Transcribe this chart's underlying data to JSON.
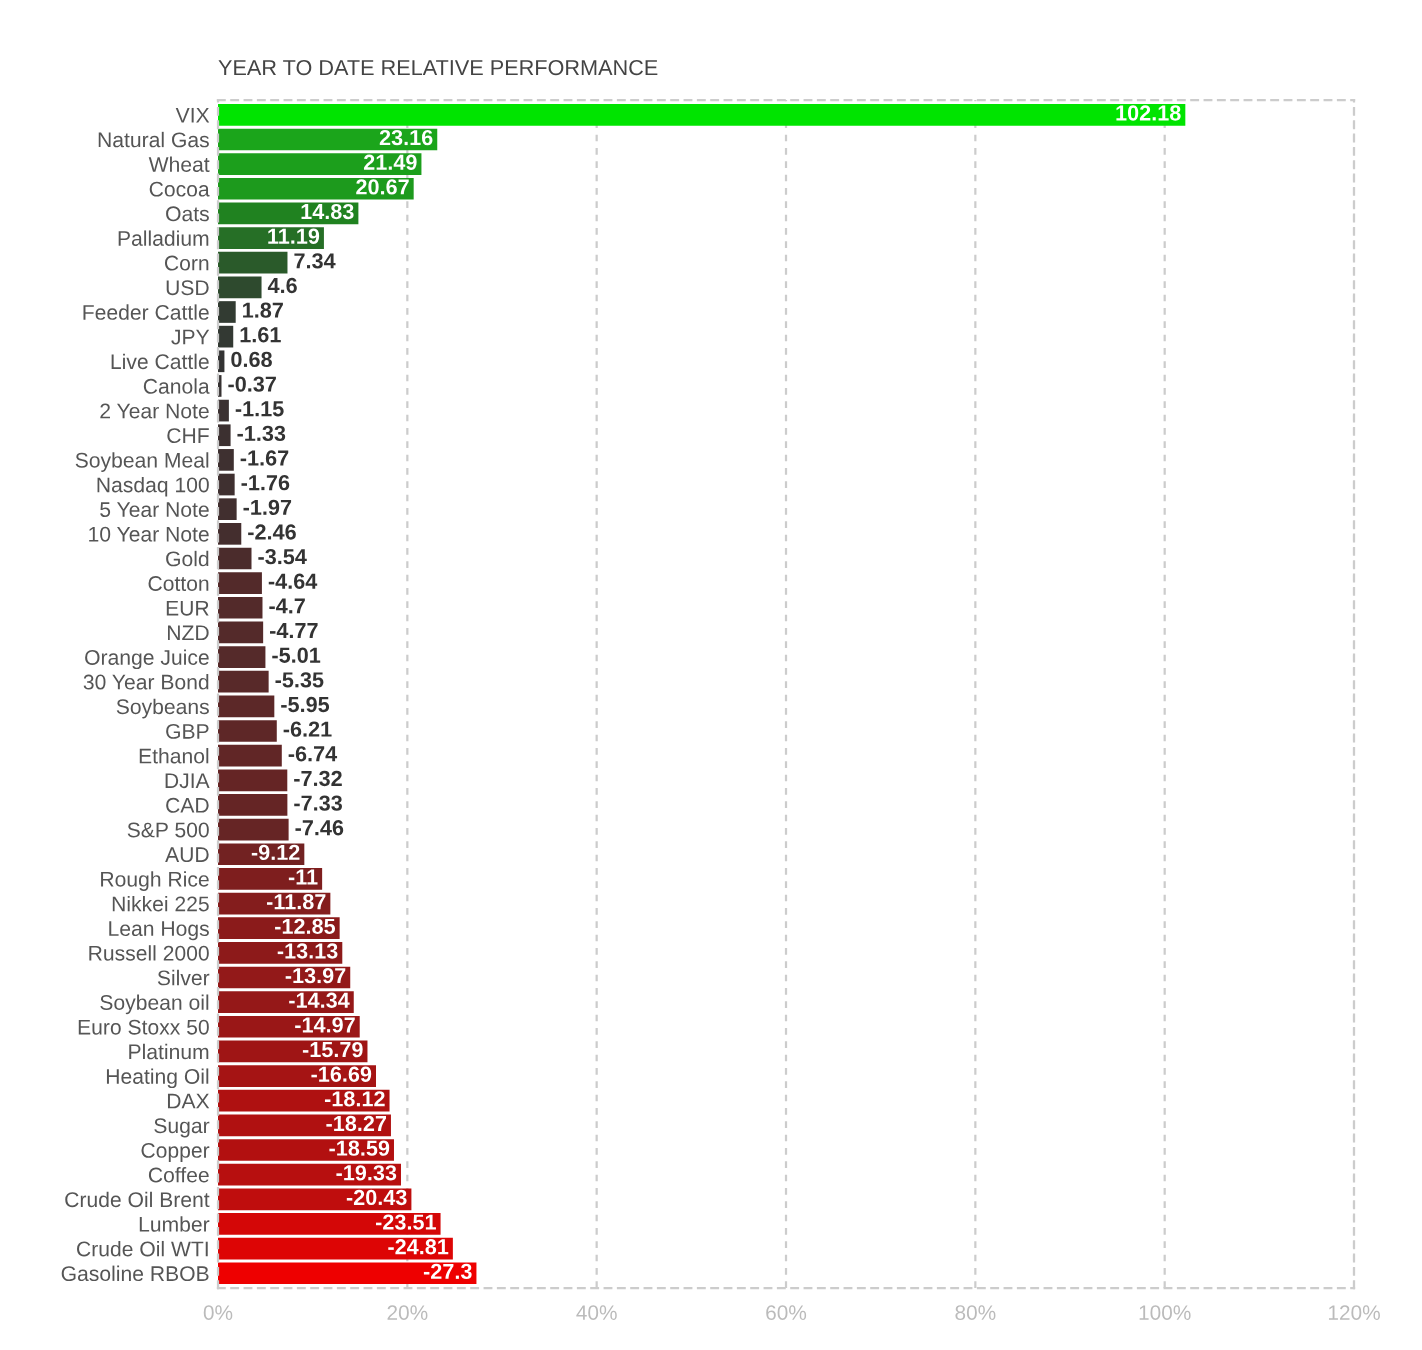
{
  "chart_data": {
    "type": "bar",
    "orientation": "horizontal",
    "title": "YEAR TO DATE RELATIVE PERFORMANCE",
    "categories": [
      "VIX",
      "Natural Gas",
      "Wheat",
      "Cocoa",
      "Oats",
      "Palladium",
      "Corn",
      "USD",
      "Feeder Cattle",
      "JPY",
      "Live Cattle",
      "Canola",
      "2 Year Note",
      "CHF",
      "Soybean Meal",
      "Nasdaq 100",
      "5 Year Note",
      "10 Year Note",
      "Gold",
      "Cotton",
      "EUR",
      "NZD",
      "Orange Juice",
      "30 Year Bond",
      "Soybeans",
      "GBP",
      "Ethanol",
      "DJIA",
      "CAD",
      "S&P 500",
      "AUD",
      "Rough Rice",
      "Nikkei 225",
      "Lean Hogs",
      "Russell 2000",
      "Silver",
      "Soybean oil",
      "Euro Stoxx 50",
      "Platinum",
      "Heating Oil",
      "DAX",
      "Sugar",
      "Copper",
      "Coffee",
      "Crude Oil Brent",
      "Lumber",
      "Crude Oil WTI",
      "Gasoline RBOB"
    ],
    "values": [
      102.18,
      23.16,
      21.49,
      20.67,
      14.83,
      11.19,
      7.34,
      4.6,
      1.87,
      1.61,
      0.68,
      -0.37,
      -1.15,
      -1.33,
      -1.67,
      -1.76,
      -1.97,
      -2.46,
      -3.54,
      -4.64,
      -4.7,
      -4.77,
      -5.01,
      -5.35,
      -5.95,
      -6.21,
      -6.74,
      -7.32,
      -7.33,
      -7.46,
      -9.12,
      -11,
      -11.87,
      -12.85,
      -13.13,
      -13.97,
      -14.34,
      -14.97,
      -15.79,
      -16.69,
      -18.12,
      -18.27,
      -18.59,
      -19.33,
      -20.43,
      -23.51,
      -24.81,
      -27.3
    ],
    "base": [
      0,
      0,
      0,
      0,
      0,
      0,
      0,
      0,
      0,
      0,
      0,
      0.37,
      1.15,
      1.33,
      1.67,
      1.76,
      1.97,
      2.46,
      3.54,
      4.64,
      4.7,
      4.77,
      5.01,
      5.35,
      5.95,
      6.21,
      6.74,
      7.32,
      7.33,
      7.46,
      9.12,
      11,
      11.87,
      12.85,
      13.13,
      13.97,
      14.34,
      14.97,
      15.79,
      16.69,
      18.12,
      18.27,
      18.59,
      19.33,
      20.43,
      23.51,
      24.81,
      27.3
    ],
    "colors": [
      "#00e400",
      "#1ba51b",
      "#1c9f1c",
      "#1d9a1d",
      "#208220",
      "#266f26",
      "#2a5a2a",
      "#2e4a2e",
      "#323b32",
      "#333933",
      "#333333",
      "#363232",
      "#3b3131",
      "#3c3030",
      "#3e3030",
      "#3f3030",
      "#412f2f",
      "#442e2e",
      "#4b2c2c",
      "#532a2a",
      "#532a2a",
      "#542a2a",
      "#552a2a",
      "#582929",
      "#5c2828",
      "#5e2727",
      "#612626",
      "#652525",
      "#652525",
      "#662525",
      "#722222",
      "#7e1e1e",
      "#841d1d",
      "#8b1b1b",
      "#8d1a1a",
      "#931919",
      "#951818",
      "#9a1717",
      "#9f1515",
      "#a51414",
      "#af1111",
      "#b01111",
      "#b21010",
      "#b70f0f",
      "#bf0d0d",
      "#d40707",
      "#dd0505",
      "#ee0000"
    ],
    "xlim": [
      0,
      120
    ],
    "xticks": [
      {
        "value": 0,
        "label": "0%"
      },
      {
        "value": 20,
        "label": "20%"
      },
      {
        "value": 40,
        "label": "40%"
      },
      {
        "value": 60,
        "label": "60%"
      },
      {
        "value": 80,
        "label": "80%"
      },
      {
        "value": 100,
        "label": "100%"
      },
      {
        "value": 120,
        "label": "120%"
      }
    ],
    "grid": "x",
    "legend": false,
    "data_labels": true
  }
}
